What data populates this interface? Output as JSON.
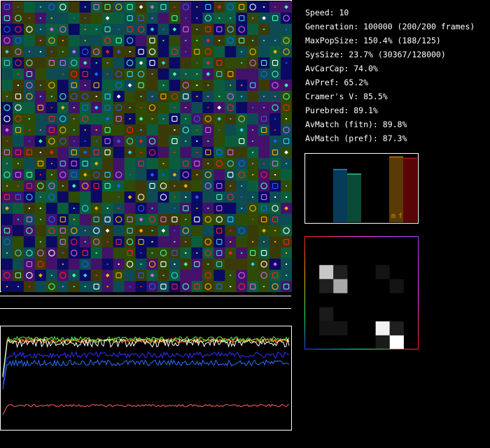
{
  "stats": {
    "speed": "Speed: 10",
    "generation": "Generation: 100000 (200/200 frames)",
    "max_pop_size": "MaxPopSize: 150.4% (188/125)",
    "sys_size": "SysSize: 23.7% (30367/128000)",
    "av_car_cap": "AvCarCap: 74.0%",
    "av_pref": "AvPref: 65.2%",
    "cramers_v": "Cramer's V: 85.5%",
    "purebred": "Purebred: 89.1%",
    "av_match_fitn": "AvMatch (fitn): 89.8%",
    "av_match_pref": "AvMatch (pref): 87.3%"
  },
  "histogram": {
    "labels": [
      "m",
      "f"
    ],
    "bars": [
      {
        "value": 0.8,
        "color": "#083a5a",
        "line": "#2a8bd0"
      },
      {
        "value": 0.73,
        "color": "#0a4a36",
        "line": "#2ac890"
      },
      {
        "value": 0.99,
        "color": "#5a3a05",
        "line": "#b07a10"
      },
      {
        "value": 0.97,
        "color": "#5a0505",
        "line": "#b01010"
      }
    ]
  },
  "matrix": {
    "cells": [
      [
        0,
        0,
        0,
        0,
        0,
        0,
        0,
        0
      ],
      [
        0,
        0,
        0,
        0,
        0,
        0,
        0,
        0
      ],
      [
        0,
        0.78,
        0.12,
        0,
        0,
        0.08,
        0,
        0
      ],
      [
        0,
        0.12,
        0.66,
        0,
        0,
        0,
        0.08,
        0
      ],
      [
        0,
        0,
        0,
        0,
        0,
        0,
        0,
        0
      ],
      [
        0,
        0.1,
        0,
        0,
        0,
        0,
        0,
        0
      ],
      [
        0,
        0.08,
        0.08,
        0,
        0,
        0.95,
        0.12,
        0
      ],
      [
        0,
        0,
        0,
        0,
        0,
        0.1,
        1.0,
        0
      ]
    ]
  },
  "grid": {
    "cols": 26,
    "rows": 26,
    "bg_palette": [
      "#2e4a05",
      "#0b5c3c",
      "#0a0a62",
      "#42126a",
      "#0d4a52",
      "#3a3a08"
    ],
    "token_colors": [
      "#ff2020",
      "#ffb000",
      "#30d0ff",
      "#40ffb0",
      "#2060ff",
      "#ffffff",
      "#e060ff"
    ]
  },
  "timeseries": {
    "series": [
      {
        "color": "#ff4444",
        "level": 0.89,
        "noise": 0.02
      },
      {
        "color": "#ffa500",
        "level": 0.88,
        "noise": 0.02
      },
      {
        "color": "#44ff44",
        "level": 0.9,
        "noise": 0.025
      },
      {
        "color": "#ffffff",
        "level": 0.86,
        "noise": 0.04
      },
      {
        "color": "#3030ff",
        "level": 0.74,
        "noise": 0.03
      },
      {
        "color": "#2a70ff",
        "level": 0.66,
        "noise": 0.03
      },
      {
        "color": "#ff6060",
        "level": 0.23,
        "noise": 0.012
      }
    ]
  }
}
